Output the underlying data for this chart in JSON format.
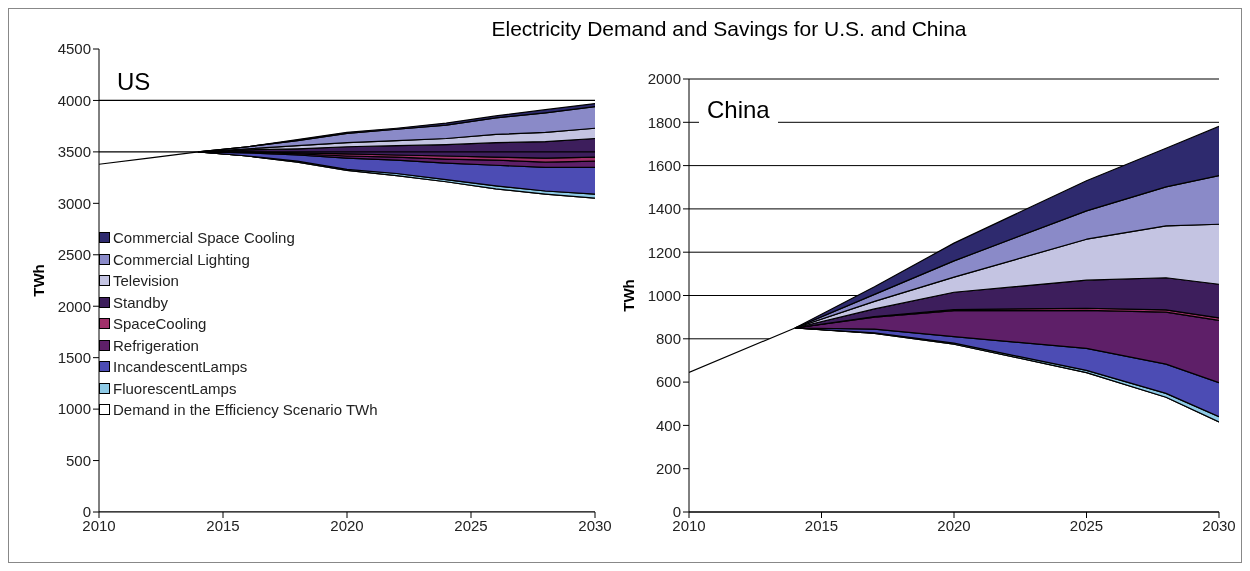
{
  "chart_data": [
    {
      "type": "area",
      "title": "US",
      "annotations": [
        "Electricity Demand and Savings for U.S. and China"
      ],
      "ylabel": "TWh",
      "stacked": true,
      "legend": "left",
      "x": [
        2010,
        2012,
        2014,
        2016,
        2018,
        2020,
        2022,
        2024,
        2026,
        2028,
        2030
      ],
      "series": [
        {
          "name": "Demand in the Efficiency Scenario TWh",
          "color": "#ffffff",
          "values": [
            3380,
            3440,
            3500,
            3460,
            3400,
            3320,
            3270,
            3210,
            3140,
            3090,
            3050
          ]
        },
        {
          "name": "FluorescentLamps",
          "color": "#8ecae6",
          "values": [
            null,
            null,
            0,
            0,
            10,
            10,
            20,
            20,
            30,
            30,
            40
          ]
        },
        {
          "name": "IncandescentLamps",
          "color": "#4c4cb4",
          "values": [
            null,
            null,
            0,
            30,
            60,
            110,
            130,
            160,
            200,
            230,
            260
          ]
        },
        {
          "name": "Refrigeration",
          "color": "#5e1f68",
          "values": [
            null,
            null,
            0,
            10,
            10,
            20,
            30,
            40,
            50,
            50,
            60
          ]
        },
        {
          "name": "SpaceCooling",
          "color": "#a0306a",
          "values": [
            null,
            null,
            0,
            0,
            10,
            20,
            20,
            30,
            30,
            40,
            40
          ]
        },
        {
          "name": "Standby",
          "color": "#3d1e5c",
          "values": [
            null,
            null,
            0,
            20,
            40,
            70,
            90,
            110,
            140,
            160,
            180
          ]
        },
        {
          "name": "Television",
          "color": "#c4c4e2",
          "values": [
            null,
            null,
            0,
            10,
            30,
            40,
            50,
            60,
            80,
            90,
            100
          ]
        },
        {
          "name": "Commercial Lighting",
          "color": "#8a8ac8",
          "values": [
            null,
            null,
            0,
            20,
            50,
            90,
            110,
            130,
            160,
            190,
            210
          ]
        },
        {
          "name": "Commercial Space Cooling",
          "color": "#2e2a6e",
          "values": [
            null,
            null,
            0,
            0,
            10,
            10,
            10,
            20,
            20,
            30,
            30
          ]
        }
      ],
      "xlim": [
        2010,
        2030
      ],
      "xticks": [
        2010,
        2015,
        2020,
        2025,
        2030
      ],
      "ylim": [
        0,
        4500
      ],
      "yticks": [
        0,
        500,
        1000,
        1500,
        2000,
        2500,
        3000,
        3500,
        4000,
        4500
      ],
      "ref_lines": [
        {
          "axis": "y",
          "value": 3500,
          "label": null,
          "color": "#000000"
        },
        {
          "axis": "y",
          "value": 4000,
          "label": null,
          "color": "#000000"
        }
      ]
    },
    {
      "type": "area",
      "title": "China",
      "ylabel": "TWh",
      "stacked": true,
      "legend": false,
      "grid": "y",
      "x": [
        2010,
        2014,
        2017,
        2020,
        2025,
        2028,
        2030
      ],
      "series": [
        {
          "color": "#ffffff",
          "values": [
            645,
            850,
            825,
            775,
            644,
            530,
            416
          ]
        },
        {
          "color": "#8ecae6",
          "values": [
            null,
            0,
            2,
            5,
            10,
            18,
            24
          ]
        },
        {
          "color": "#4c4cb4",
          "values": [
            null,
            0,
            18,
            30,
            102,
            135,
            157
          ]
        },
        {
          "color": "#5e1f68",
          "values": [
            null,
            0,
            55,
            120,
            175,
            240,
            288
          ]
        },
        {
          "color": "#a0306a",
          "values": [
            null,
            0,
            3,
            5,
            10,
            11,
            12
          ]
        },
        {
          "color": "#3d1e5c",
          "values": [
            null,
            0,
            35,
            80,
            130,
            148,
            155
          ]
        },
        {
          "color": "#c4c4e2",
          "values": [
            null,
            0,
            35,
            70,
            189,
            240,
            277
          ]
        },
        {
          "color": "#8a8ac8",
          "values": [
            null,
            0,
            32,
            75,
            131,
            180,
            225
          ]
        },
        {
          "color": "#2e2a6e",
          "values": [
            null,
            0,
            35,
            82,
            139,
            178,
            227
          ]
        }
      ],
      "xlim": [
        2010,
        2030
      ],
      "xticks": [
        2010,
        2015,
        2020,
        2025,
        2030
      ],
      "ylim": [
        0,
        2000
      ],
      "yticks": [
        0,
        200,
        400,
        600,
        800,
        1000,
        1200,
        1400,
        1600,
        1800,
        2000
      ]
    }
  ]
}
